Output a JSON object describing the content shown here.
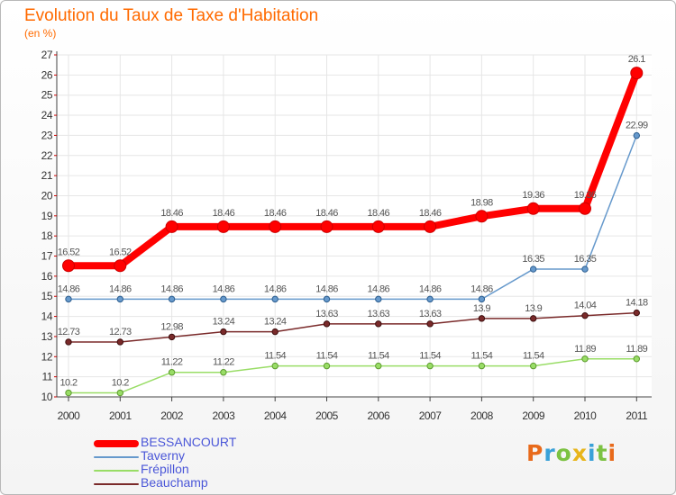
{
  "chart_data": {
    "type": "line",
    "title": "Evolution du Taux de Taxe d'Habitation",
    "ylabel": "(en %)",
    "xlabel": "",
    "ylim": [
      10,
      27
    ],
    "yticks": [
      10,
      11,
      12,
      13,
      14,
      15,
      16,
      17,
      18,
      19,
      20,
      21,
      22,
      23,
      24,
      25,
      26,
      27
    ],
    "x": [
      "2000",
      "2001",
      "2002",
      "2003",
      "2004",
      "2005",
      "2006",
      "2007",
      "2008",
      "2009",
      "2010",
      "2011"
    ],
    "series": [
      {
        "name": "BESSANCOURT",
        "color": "#ff0000",
        "values": [
          16.52,
          16.52,
          18.46,
          18.46,
          18.46,
          18.46,
          18.46,
          18.46,
          18.98,
          19.36,
          19.36,
          26.1
        ],
        "labels": [
          "16.52",
          "16.52",
          "18.46",
          "18.46",
          "18.46",
          "18.46",
          "18.46",
          "18.46",
          "18.98",
          "19.36",
          "19.36",
          "26.1"
        ]
      },
      {
        "name": "Taverny",
        "color": "#6699cc",
        "values": [
          14.86,
          14.86,
          14.86,
          14.86,
          14.86,
          14.86,
          14.86,
          14.86,
          14.86,
          16.35,
          16.35,
          22.99
        ],
        "labels": [
          "14.86",
          "14.86",
          "14.86",
          "14.86",
          "14.86",
          "14.86",
          "14.86",
          "14.86",
          "14.86",
          "16.35",
          "16.35",
          "22.99"
        ]
      },
      {
        "name": "Frépillon",
        "color": "#99dd66",
        "values": [
          10.2,
          10.2,
          11.22,
          11.22,
          11.54,
          11.54,
          11.54,
          11.54,
          11.54,
          11.54,
          11.89,
          11.89
        ],
        "labels": [
          "10.2",
          "10.2",
          "11.22",
          "11.22",
          "11.54",
          "11.54",
          "11.54",
          "11.54",
          "11.54",
          "11.54",
          "11.89",
          "11.89"
        ]
      },
      {
        "name": "Beauchamp",
        "color": "#7a2a2a",
        "values": [
          12.73,
          12.73,
          12.98,
          13.24,
          13.24,
          13.63,
          13.63,
          13.63,
          13.9,
          13.9,
          14.04,
          14.18
        ],
        "labels": [
          "12.73",
          "12.73",
          "12.98",
          "13.24",
          "13.24",
          "13.63",
          "13.63",
          "13.63",
          "13.9",
          "13.9",
          "14.04",
          "14.18"
        ]
      }
    ],
    "legend": "bottom-left"
  },
  "logo": {
    "letters": [
      "P",
      "r",
      "o",
      "x",
      "i",
      "t",
      "i"
    ],
    "colors": [
      "#e86a1b",
      "#3aa1d8",
      "#7cc242",
      "#e8b51b",
      "#3aa1d8",
      "#7cc242",
      "#e86a1b"
    ]
  }
}
